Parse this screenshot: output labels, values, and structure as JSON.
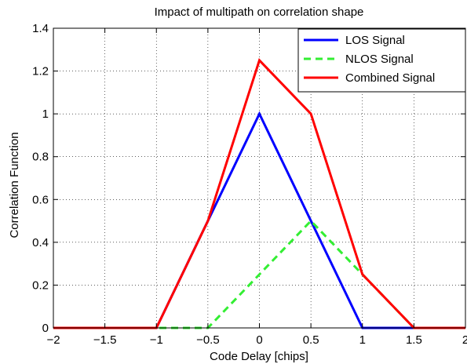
{
  "chart_data": {
    "type": "line",
    "title": "Impact of multipath on correlation shape",
    "xlabel": "Code Delay [chips]",
    "ylabel": "Correlation Function",
    "xlim": [
      -2,
      2
    ],
    "ylim": [
      0,
      1.4
    ],
    "xticks": [
      -2,
      -1.5,
      -1,
      -0.5,
      0,
      0.5,
      1,
      1.5,
      2
    ],
    "xtick_labels": [
      "−2",
      "−1.5",
      "−1",
      "−0.5",
      "0",
      "0.5",
      "1",
      "1.5",
      "2"
    ],
    "yticks": [
      0,
      0.2,
      0.4,
      0.6,
      0.8,
      1,
      1.2,
      1.4
    ],
    "ytick_labels": [
      "0",
      "0.2",
      "0.4",
      "0.6",
      "0.8",
      "1",
      "1.2",
      "1.4"
    ],
    "grid": true,
    "legend_position": "top-right",
    "series": [
      {
        "name": "LOS Signal",
        "color": "#0000ff",
        "dash": "solid",
        "x": [
          -2,
          -1,
          0,
          1,
          2
        ],
        "y": [
          0,
          0,
          1,
          0,
          0
        ]
      },
      {
        "name": "NLOS Signal",
        "color": "#33ee33",
        "dash": "dashed",
        "x": [
          -2,
          -0.5,
          0.5,
          1.5,
          2
        ],
        "y": [
          0,
          0,
          0.5,
          0,
          0
        ]
      },
      {
        "name": "Combined Signal",
        "color": "#ff0000",
        "dash": "solid",
        "x": [
          -2,
          -1,
          -0.5,
          0,
          0.5,
          1,
          1.5,
          2
        ],
        "y": [
          0,
          0,
          0.5,
          1.25,
          1,
          0.25,
          0,
          0
        ]
      }
    ]
  }
}
